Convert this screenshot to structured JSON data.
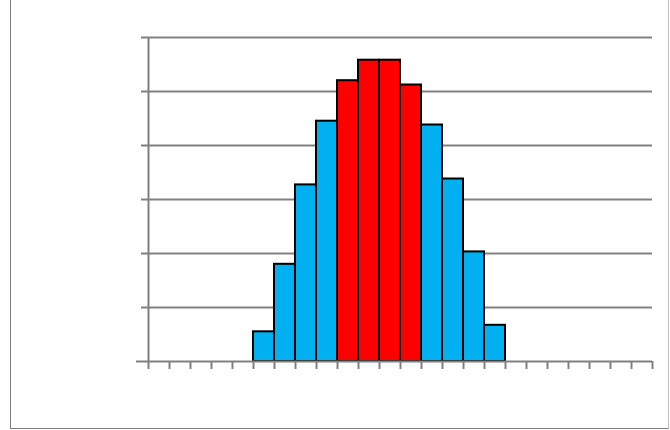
{
  "chart_data": {
    "type": "bar",
    "title": "",
    "xlabel": "",
    "ylabel": "",
    "grid": true,
    "ylim": [
      0,
      6
    ],
    "num_category_slots": 24,
    "values": [
      0,
      0,
      0,
      0,
      0,
      0.55,
      1.8,
      3.27,
      4.45,
      5.2,
      5.58,
      5.58,
      5.12,
      4.38,
      3.38,
      2.03,
      0.67,
      0,
      0,
      0,
      0,
      0,
      0,
      0
    ],
    "highlight_range": [
      9,
      12
    ],
    "colors": {
      "base_bar": "#00b0f0",
      "highlight_bar": "#ff0000",
      "bar_outline": "#000000",
      "gridline": "#808080",
      "axis": "#808080"
    }
  }
}
